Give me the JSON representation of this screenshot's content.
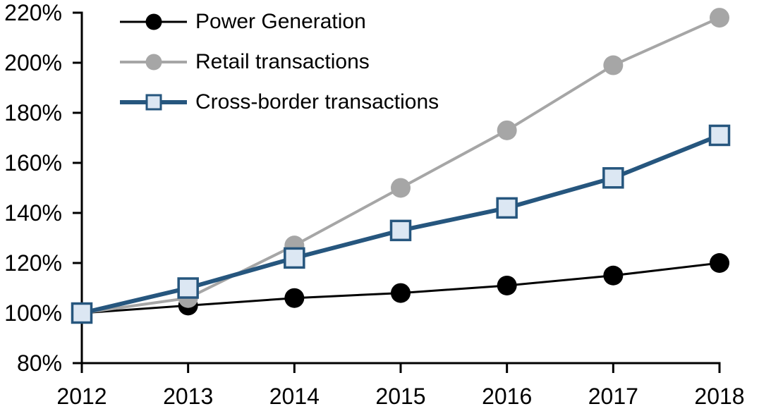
{
  "chart_data": {
    "type": "line",
    "title": "",
    "xlabel": "",
    "ylabel": "",
    "x_labels": [
      "2012",
      "2013",
      "2014",
      "2015",
      "2016",
      "2017",
      "2018"
    ],
    "ylim": [
      80,
      220
    ],
    "ytick_values": [
      220,
      200,
      180,
      160,
      140,
      120,
      100,
      80
    ],
    "ytick_labels": [
      "220%",
      "200%",
      "180%",
      "160%",
      "140%",
      "120%",
      "100%",
      "80%"
    ],
    "value_unit": "% (indexed, 2012 = 100%)",
    "grid": false,
    "legend_position": "top-left",
    "axis_color": "#000000",
    "series": [
      {
        "name": "Power Generation",
        "values": [
          100,
          103,
          106,
          108,
          111,
          115,
          120
        ],
        "color": "#000000",
        "marker": "circle",
        "marker_fill": "#000000",
        "line_width": 3
      },
      {
        "name": "Retail transactions",
        "values": [
          100,
          106,
          127,
          150,
          173,
          199,
          218
        ],
        "color": "#A6A6A6",
        "marker": "circle",
        "marker_fill": "#A6A6A6",
        "line_width": 4
      },
      {
        "name": "Cross-border transactions",
        "values": [
          100,
          110,
          122,
          133,
          142,
          154,
          171
        ],
        "color": "#26567E",
        "marker": "square",
        "marker_fill": "#DCE7F3",
        "line_width": 6
      }
    ]
  }
}
